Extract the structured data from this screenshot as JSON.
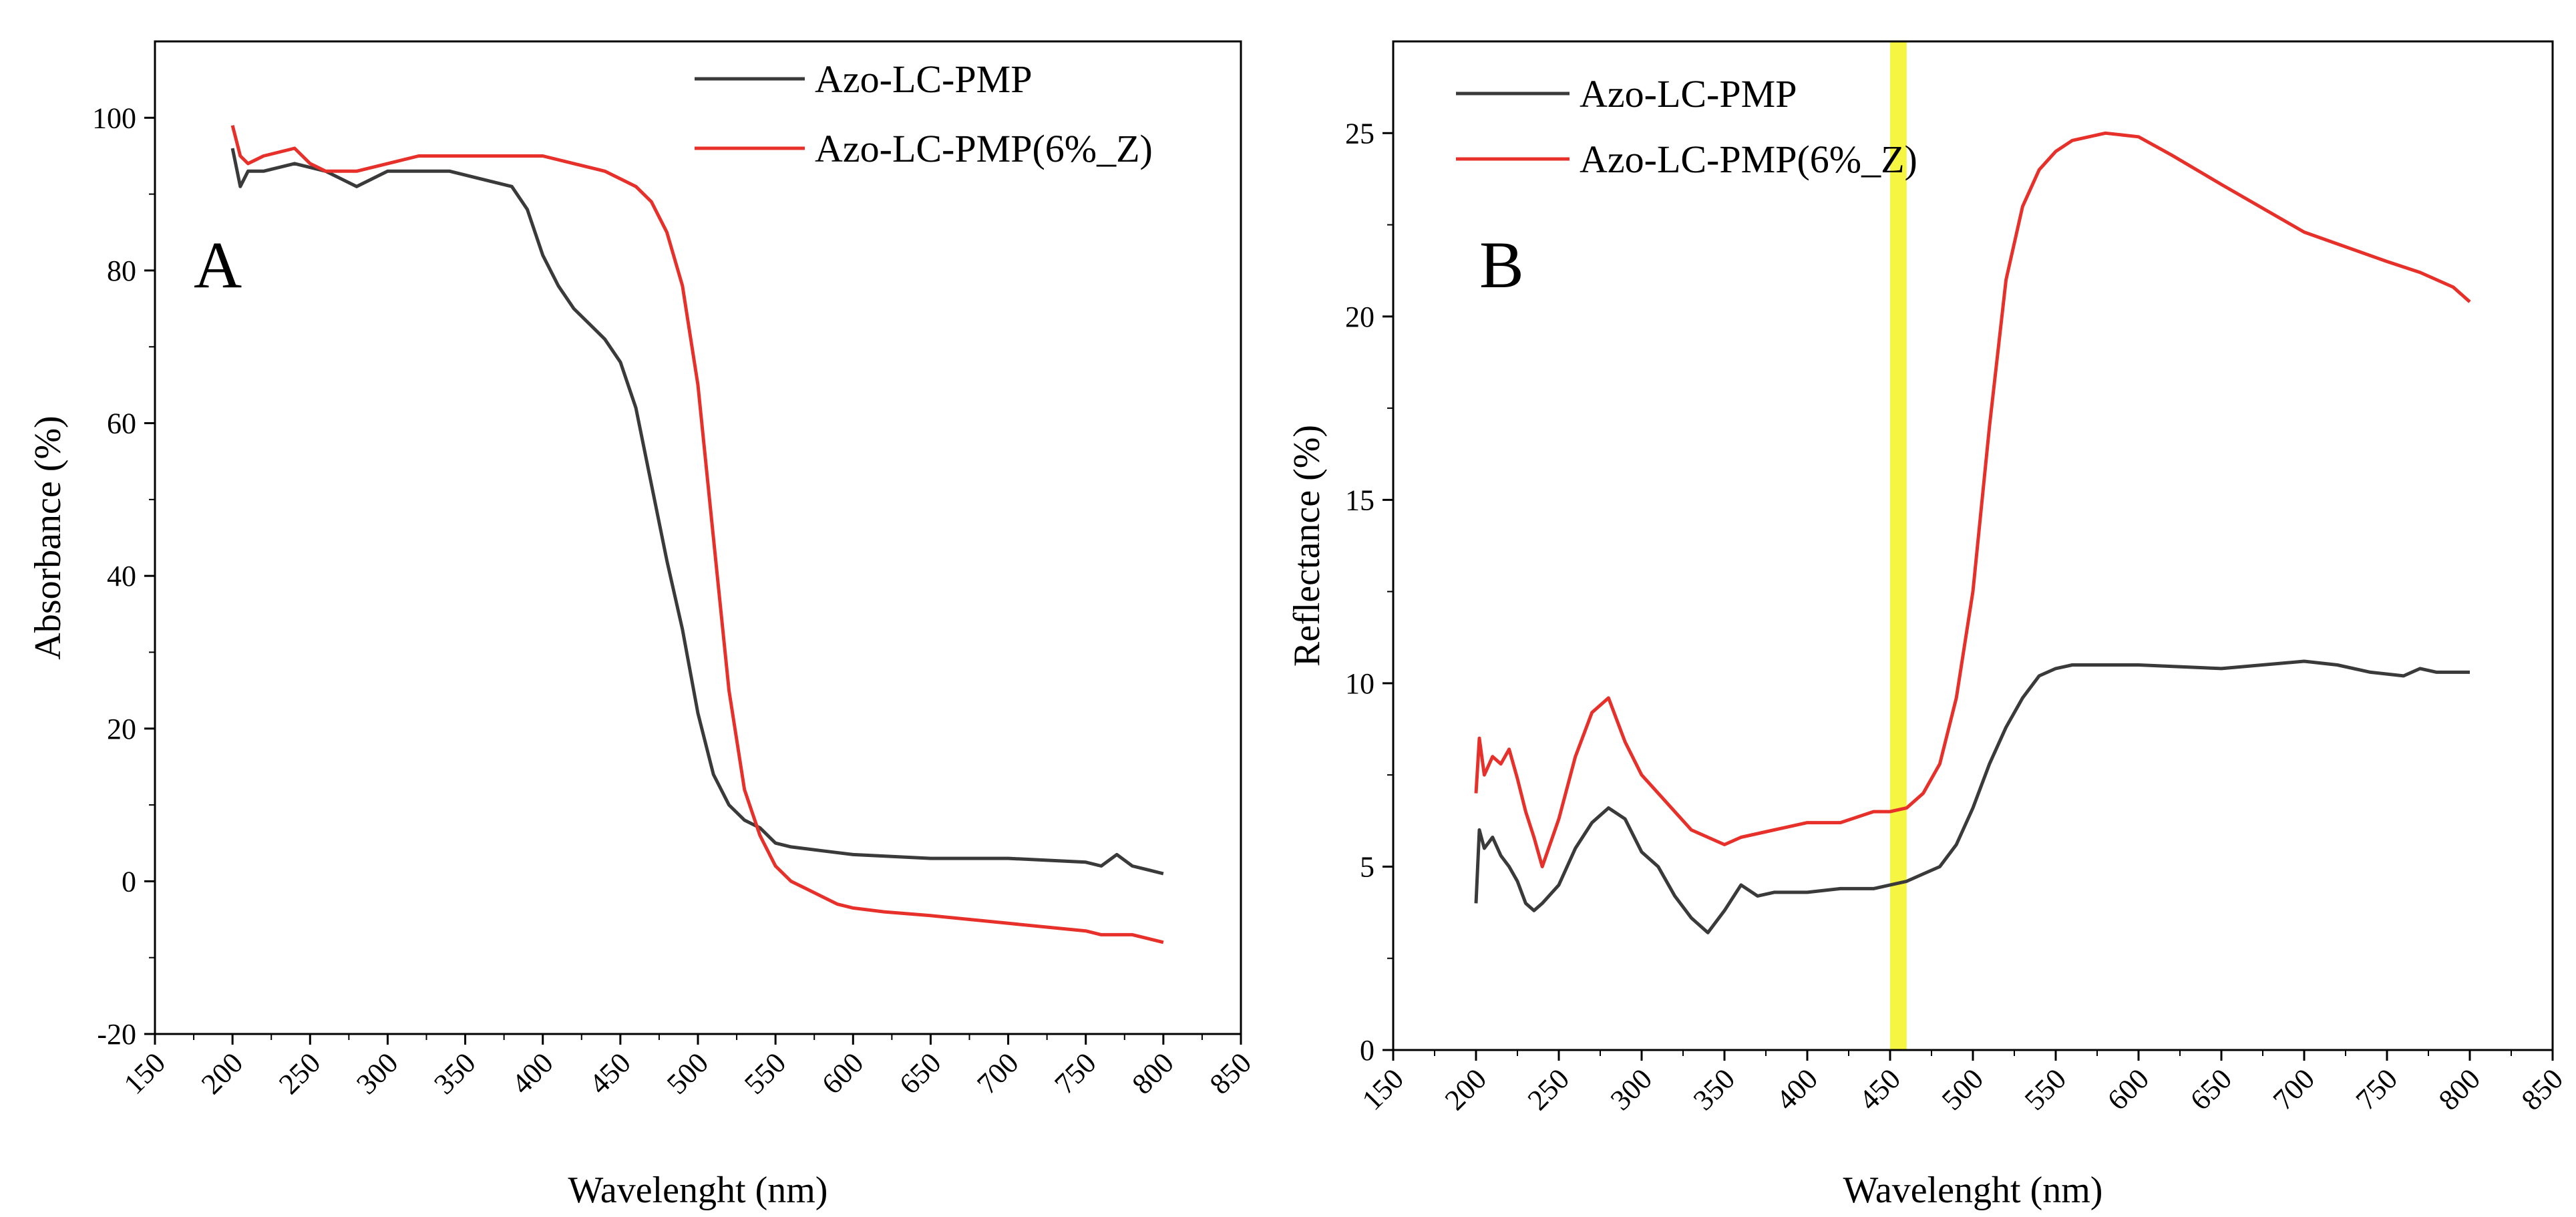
{
  "chart_data": [
    {
      "type": "line",
      "panel_label": "A",
      "xlabel": "Wavelenght (nm)",
      "ylabel": "Absorbance (%)",
      "xlim": [
        150,
        850
      ],
      "ylim": [
        -20,
        110
      ],
      "xticks": [
        "150",
        "200",
        "250",
        "300",
        "350",
        "400",
        "450",
        "500",
        "550",
        "600",
        "650",
        "700",
        "750",
        "800",
        "850"
      ],
      "yticks": [
        "-20",
        "0",
        "20",
        "40",
        "60",
        "80",
        "100"
      ],
      "legend_position": "top-right",
      "grid": false,
      "series": [
        {
          "name": "Azo-LC-PMP",
          "color": "#3a3a3a",
          "x": [
            200,
            205,
            210,
            220,
            240,
            260,
            280,
            300,
            320,
            340,
            360,
            380,
            390,
            400,
            410,
            420,
            430,
            440,
            450,
            460,
            470,
            480,
            490,
            500,
            510,
            520,
            530,
            540,
            550,
            560,
            580,
            600,
            650,
            700,
            750,
            760,
            770,
            780,
            790,
            800
          ],
          "y": [
            96,
            91,
            93,
            93,
            94,
            93,
            91,
            93,
            93,
            93,
            92,
            91,
            88,
            82,
            78,
            75,
            73,
            71,
            68,
            62,
            52,
            42,
            33,
            22,
            14,
            10,
            8,
            7,
            5,
            4.5,
            4,
            3.5,
            3,
            3,
            2.5,
            2,
            3.5,
            2,
            1.5,
            1
          ]
        },
        {
          "name": "Azo-LC-PMP(6%_Z)",
          "color": "#e8302a",
          "x": [
            200,
            205,
            210,
            220,
            240,
            250,
            260,
            280,
            300,
            320,
            340,
            360,
            380,
            400,
            420,
            440,
            450,
            460,
            470,
            480,
            490,
            500,
            510,
            520,
            530,
            540,
            550,
            560,
            570,
            580,
            590,
            600,
            620,
            650,
            700,
            750,
            760,
            780,
            790,
            800
          ],
          "y": [
            99,
            95,
            94,
            95,
            96,
            94,
            93,
            93,
            94,
            95,
            95,
            95,
            95,
            95,
            94,
            93,
            92,
            91,
            89,
            85,
            78,
            65,
            45,
            25,
            12,
            6,
            2,
            0,
            -1,
            -2,
            -3,
            -3.5,
            -4,
            -4.5,
            -5.5,
            -6.5,
            -7,
            -7,
            -7.5,
            -8
          ]
        }
      ]
    },
    {
      "type": "line",
      "panel_label": "B",
      "xlabel": "Wavelenght (nm)",
      "ylabel": "Reflectance (%)",
      "xlim": [
        150,
        850
      ],
      "ylim": [
        0,
        27.5
      ],
      "xticks": [
        "150",
        "200",
        "250",
        "300",
        "350",
        "400",
        "450",
        "500",
        "550",
        "600",
        "650",
        "700",
        "750",
        "800",
        "850"
      ],
      "yticks": [
        "0",
        "5",
        "10",
        "15",
        "20",
        "25"
      ],
      "highlight_band": {
        "x": [
          450,
          460
        ],
        "color": "#f5f542"
      },
      "legend_position": "top-left",
      "grid": false,
      "series": [
        {
          "name": "Azo-LC-PMP",
          "color": "#3a3a3a",
          "x": [
            200,
            202,
            205,
            210,
            215,
            220,
            225,
            230,
            235,
            240,
            250,
            260,
            270,
            280,
            290,
            300,
            310,
            320,
            330,
            340,
            350,
            360,
            370,
            380,
            400,
            420,
            440,
            450,
            460,
            470,
            480,
            490,
            500,
            510,
            520,
            530,
            540,
            550,
            560,
            600,
            650,
            700,
            720,
            740,
            760,
            770,
            780,
            800
          ],
          "y": [
            4.0,
            6.0,
            5.5,
            5.8,
            5.3,
            5.0,
            4.6,
            4.0,
            3.8,
            4.0,
            4.5,
            5.5,
            6.2,
            6.6,
            6.3,
            5.4,
            5.0,
            4.2,
            3.6,
            3.2,
            3.8,
            4.5,
            4.2,
            4.3,
            4.3,
            4.4,
            4.4,
            4.5,
            4.6,
            4.8,
            5.0,
            5.6,
            6.6,
            7.8,
            8.8,
            9.6,
            10.2,
            10.4,
            10.5,
            10.5,
            10.4,
            10.6,
            10.5,
            10.3,
            10.2,
            10.4,
            10.3,
            10.3
          ]
        },
        {
          "name": "Azo-LC-PMP(6%_Z)",
          "color": "#e8302a",
          "x": [
            200,
            202,
            205,
            210,
            215,
            220,
            225,
            230,
            235,
            240,
            250,
            260,
            270,
            280,
            290,
            300,
            310,
            320,
            330,
            340,
            350,
            360,
            380,
            400,
            420,
            440,
            450,
            460,
            470,
            480,
            490,
            500,
            510,
            520,
            530,
            540,
            550,
            560,
            570,
            580,
            600,
            620,
            650,
            700,
            750,
            770,
            790,
            800
          ],
          "y": [
            7.0,
            8.5,
            7.5,
            8.0,
            7.8,
            8.2,
            7.4,
            6.5,
            5.8,
            5.0,
            6.3,
            8.0,
            9.2,
            9.6,
            8.4,
            7.5,
            7.0,
            6.5,
            6.0,
            5.8,
            5.6,
            5.8,
            6.0,
            6.2,
            6.2,
            6.5,
            6.5,
            6.6,
            7.0,
            7.8,
            9.6,
            12.5,
            17.0,
            21.0,
            23.0,
            24.0,
            24.5,
            24.8,
            24.9,
            25.0,
            24.9,
            24.4,
            23.6,
            22.3,
            21.5,
            21.2,
            20.8,
            20.4
          ]
        }
      ]
    }
  ]
}
